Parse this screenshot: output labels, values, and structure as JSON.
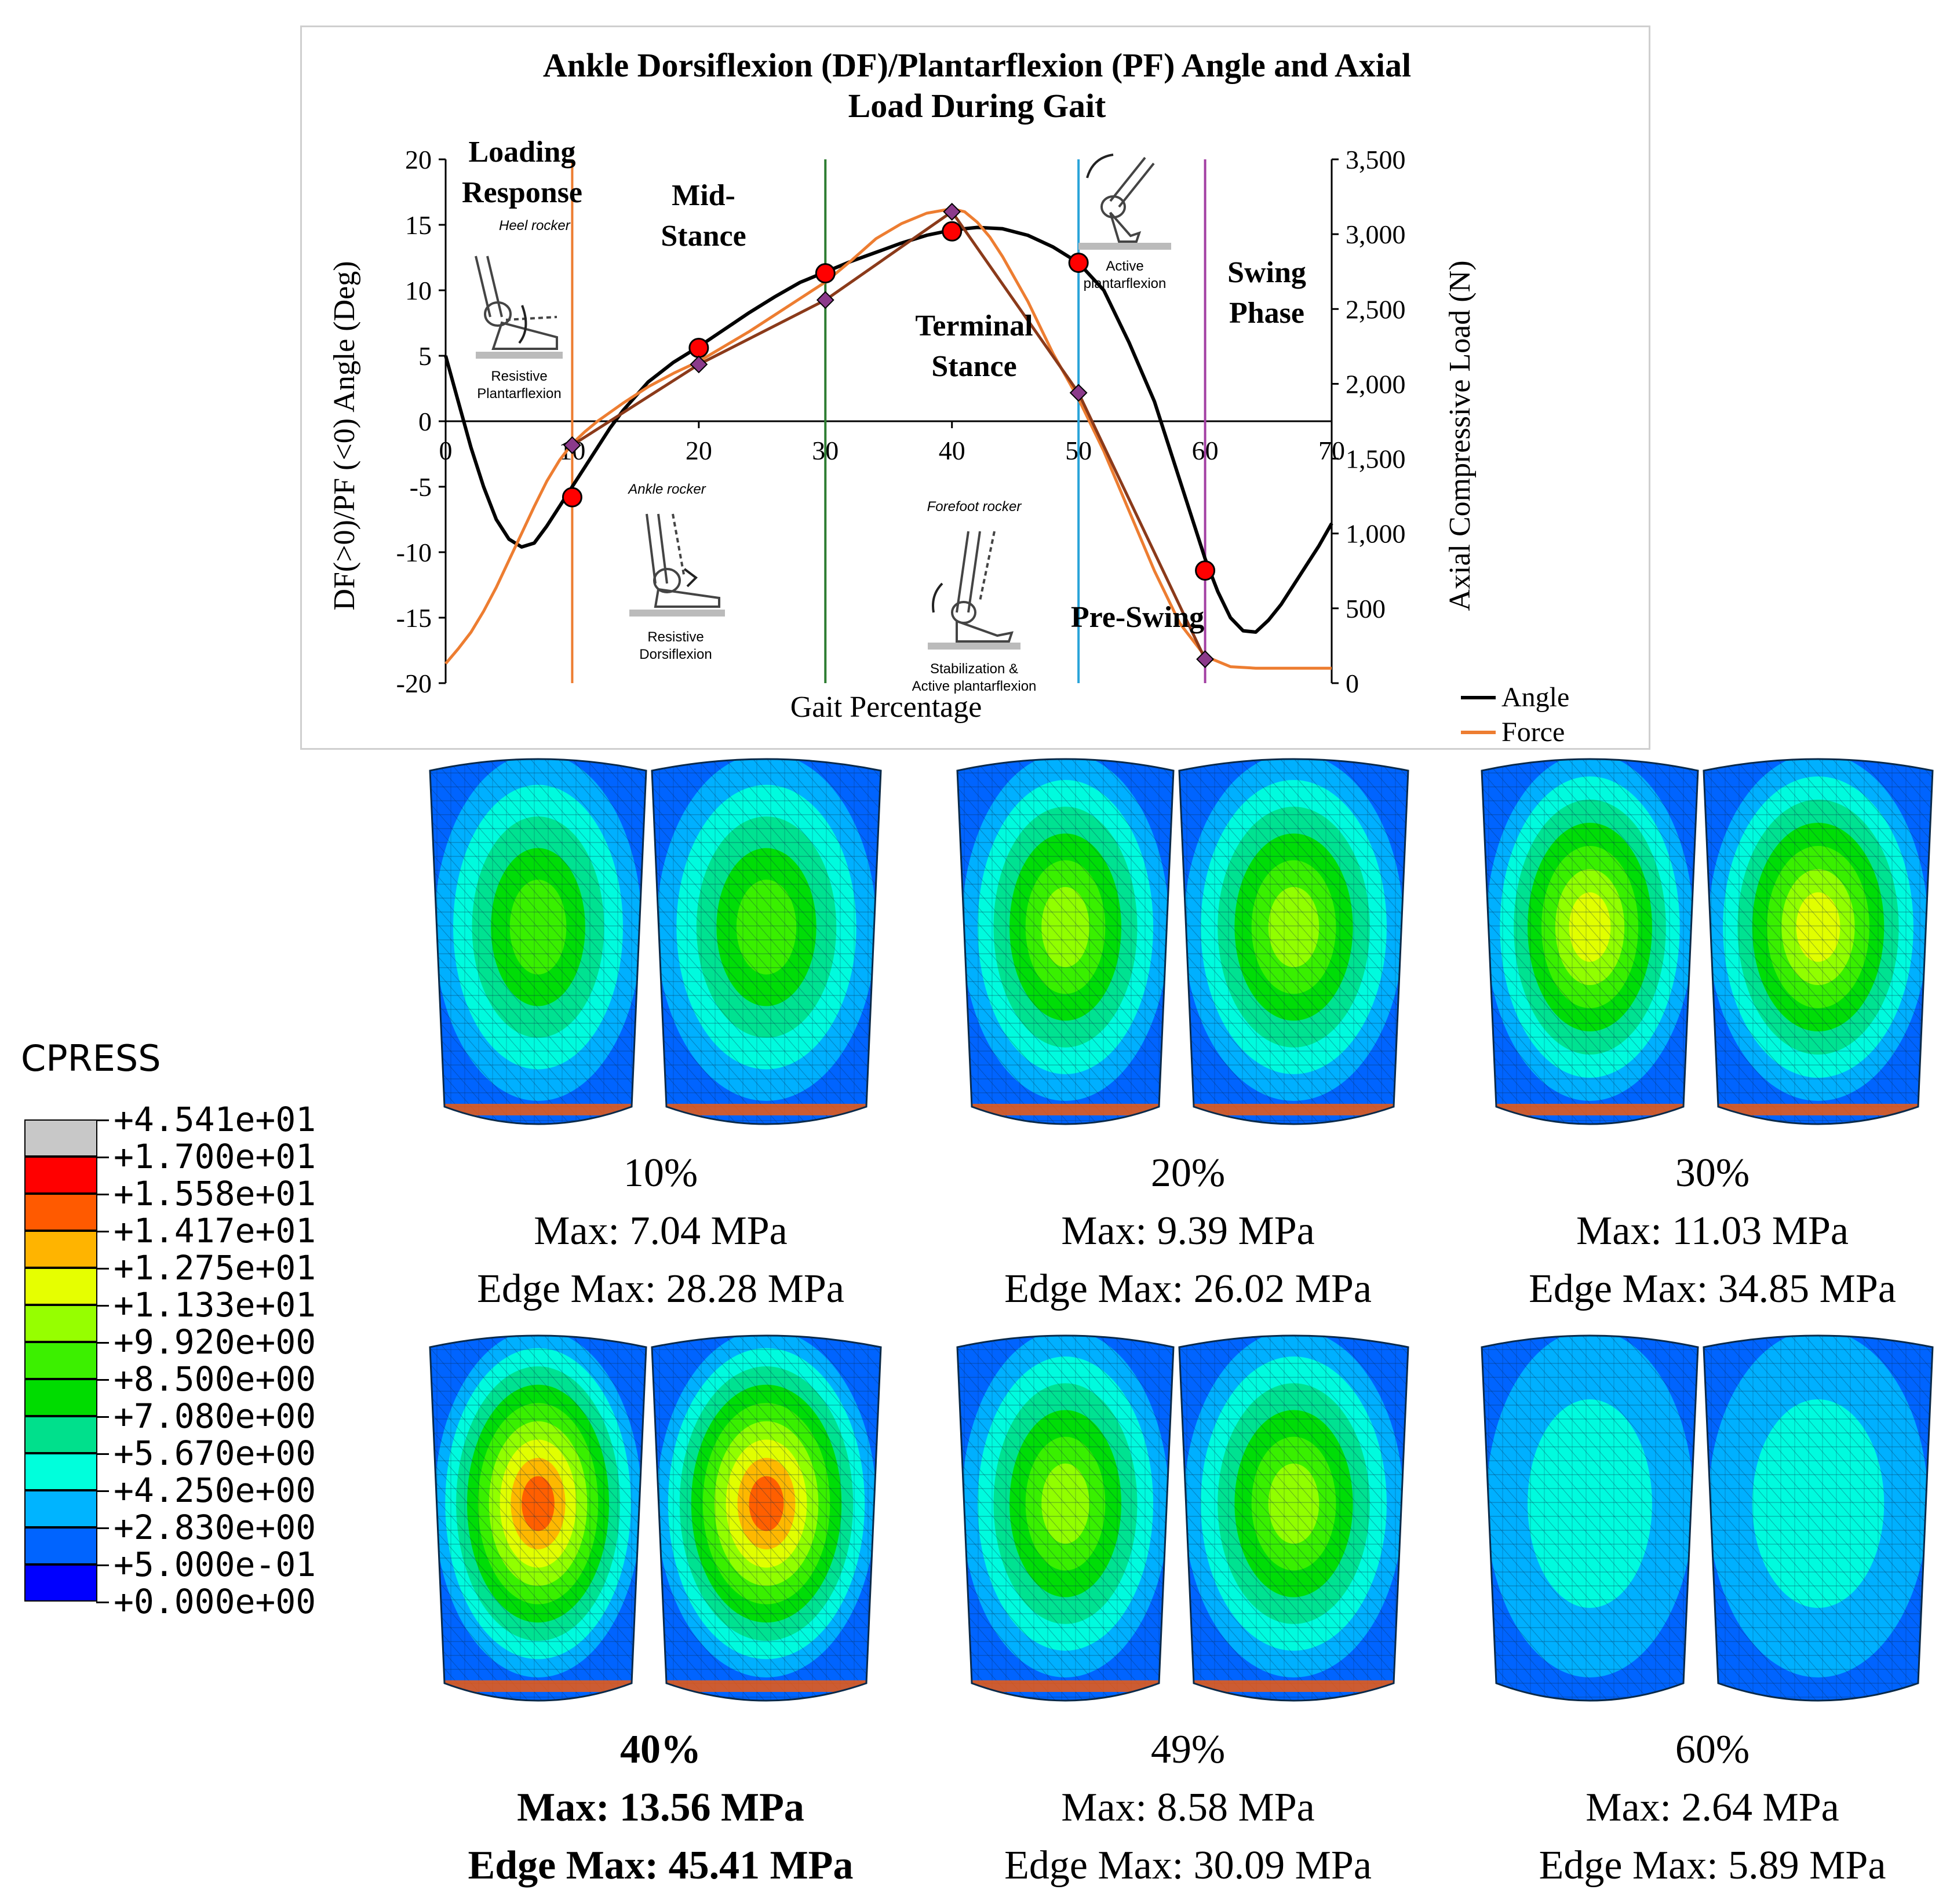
{
  "chart_data": {
    "type": "line",
    "title": "Ankle Dorsiflexion (DF)/Plantarflexion (PF) Angle and Axial Load During Gait",
    "title_lines": [
      "Ankle Dorsiflexion (DF)/Plantarflexion (PF) Angle and Axial",
      "Load During Gait"
    ],
    "xlabel": "Gait Percentage",
    "ylabel_left": "DF(>0)/PF (<0) Angle (Deg)",
    "ylabel_right": "Axial Compressive Load (N)",
    "xlim": [
      0,
      70
    ],
    "ylim_left": [
      -20,
      20
    ],
    "ylim_right": [
      0,
      3500
    ],
    "x_ticks": [
      "0",
      "10",
      "20",
      "30",
      "40",
      "50",
      "60",
      "70"
    ],
    "y_left_ticks": [
      "20",
      "15",
      "10",
      "5",
      "0",
      "-5",
      "-10",
      "-15",
      "-20"
    ],
    "y_right_ticks": [
      "3,500",
      "3,000",
      "2,500",
      "2,000",
      "1,500",
      "1,000",
      "500",
      "0"
    ],
    "grid": false,
    "legend_position": "bottom-right",
    "series": [
      {
        "name": "Angle",
        "axis": "left",
        "color": "#000000",
        "x": [
          0,
          1,
          2,
          3,
          4,
          5,
          6,
          7,
          8,
          9,
          10,
          11,
          12,
          13,
          14,
          16,
          18,
          20,
          22,
          24,
          26,
          28,
          30,
          32,
          34,
          36,
          38,
          40,
          42,
          44,
          46,
          48,
          50,
          52,
          54,
          56,
          58,
          60,
          61,
          62,
          63,
          64,
          65,
          66,
          67,
          68,
          69,
          70
        ],
        "y": [
          5,
          1.5,
          -2,
          -5,
          -7.5,
          -9,
          -9.6,
          -9.3,
          -8,
          -6.5,
          -5,
          -3.5,
          -2,
          -0.5,
          0.8,
          3,
          4.5,
          5.7,
          7,
          8.3,
          9.5,
          10.6,
          11.4,
          12.2,
          12.9,
          13.6,
          14.2,
          14.6,
          14.8,
          14.7,
          14.2,
          13.3,
          12.1,
          10,
          6,
          1.5,
          -4.5,
          -10.5,
          -13,
          -15,
          -16,
          -16.1,
          -15.2,
          -14,
          -12.5,
          -11,
          -9.5,
          -7.8
        ]
      },
      {
        "name": "Force",
        "axis": "right",
        "color": "#ed7d31",
        "x": [
          0,
          1,
          2,
          3,
          4,
          5,
          6,
          7,
          8,
          9,
          10,
          11,
          12,
          14,
          16,
          18,
          20,
          22,
          24,
          26,
          28,
          30,
          32,
          34,
          36,
          38,
          40,
          41,
          42,
          43,
          44,
          46,
          48,
          50,
          52,
          54,
          56,
          58,
          60,
          62,
          64,
          66,
          68,
          70
        ],
        "y": [
          130,
          230,
          340,
          480,
          640,
          820,
          1000,
          1180,
          1350,
          1490,
          1600,
          1680,
          1750,
          1870,
          1980,
          2070,
          2150,
          2250,
          2350,
          2460,
          2570,
          2680,
          2820,
          2970,
          3070,
          3140,
          3170,
          3150,
          3080,
          2980,
          2850,
          2550,
          2200,
          1900,
          1550,
          1150,
          750,
          400,
          180,
          110,
          100,
          100,
          100,
          100
        ]
      },
      {
        "name": "",
        "axis": "right",
        "color": "#8b3a1a",
        "x": [
          10,
          20,
          30,
          40,
          50,
          60
        ],
        "y": [
          1590,
          2130,
          2560,
          3150,
          1940,
          160
        ]
      }
    ],
    "markers": {
      "circles": {
        "axis": "left",
        "color": "#ff0000",
        "x": [
          10,
          20,
          30,
          40,
          50,
          60
        ],
        "y": [
          -5.8,
          5.6,
          11.3,
          14.5,
          12.1,
          -11.4
        ]
      },
      "diamonds": {
        "axis": "right",
        "color": "#8b3a8b",
        "x": [
          10,
          20,
          30,
          40,
          50,
          60
        ],
        "y": [
          1590,
          2130,
          2560,
          3150,
          1940,
          160
        ]
      }
    },
    "phase_lines": [
      {
        "x": 10,
        "color": "#ed7d31"
      },
      {
        "x": 30,
        "color": "#2e7d32"
      },
      {
        "x": 50,
        "color": "#29a3d9"
      },
      {
        "x": 60,
        "color": "#a33fa3"
      }
    ],
    "phase_labels": {
      "loading_response": [
        "Loading",
        "Response"
      ],
      "mid_stance": [
        "Mid-",
        "Stance"
      ],
      "terminal_stance": [
        "Terminal",
        "Stance"
      ],
      "pre_swing": "Pre-Swing",
      "swing_phase": [
        "Swing",
        "Phase"
      ]
    },
    "rocker_labels": {
      "heel_rocker": "Heel rocker",
      "resistive_pf": [
        "Resistive",
        "Plantarflexion"
      ],
      "ankle_rocker": "Ankle rocker",
      "resistive_df": [
        "Resistive",
        "Dorsiflexion"
      ],
      "forefoot_rocker": "Forefoot rocker",
      "stabilization": [
        "Stabilization &",
        "Active plantarflexion"
      ],
      "active_pf": [
        "Active",
        "plantarflexion"
      ]
    }
  },
  "contour_legend": {
    "title": "CPRESS",
    "labels": [
      "+4.541e+01",
      "+1.700e+01",
      "+1.558e+01",
      "+1.417e+01",
      "+1.275e+01",
      "+1.133e+01",
      "+9.920e+00",
      "+8.500e+00",
      "+7.080e+00",
      "+5.670e+00",
      "+4.250e+00",
      "+2.830e+00",
      "+5.000e-01",
      "+0.000e+00"
    ],
    "colors": [
      "#c8c8c8",
      "#ff0000",
      "#ff5a00",
      "#ffb400",
      "#e6ff00",
      "#96ff00",
      "#3cf000",
      "#00dc00",
      "#00e08c",
      "#00ffdc",
      "#00b4ff",
      "#0064ff",
      "#0000ff"
    ]
  },
  "panels": [
    {
      "pct": "10%",
      "max": "Max: 7.04 MPa",
      "edge": "Edge Max: 28.28 MPa",
      "bold": false,
      "level": 0.52
    },
    {
      "pct": "20%",
      "max": "Max: 9.39 MPa",
      "edge": "Edge Max: 26.02 MPa",
      "bold": false,
      "level": 0.69
    },
    {
      "pct": "30%",
      "max": "Max: 11.03 MPa",
      "edge": "Edge Max: 34.85 MPa",
      "bold": false,
      "level": 0.81
    },
    {
      "pct": "40%",
      "max": "Max: 13.56 MPa",
      "edge": "Edge Max: 45.41 MPa",
      "bold": true,
      "level": 1.0
    },
    {
      "pct": "49%",
      "max": "Max: 8.58 MPa",
      "edge": "Edge Max: 30.09 MPa",
      "bold": false,
      "level": 0.63
    },
    {
      "pct": "60%",
      "max": "Max: 2.64 MPa",
      "edge": "Edge Max: 5.89 MPa",
      "bold": false,
      "level": 0.19
    }
  ]
}
